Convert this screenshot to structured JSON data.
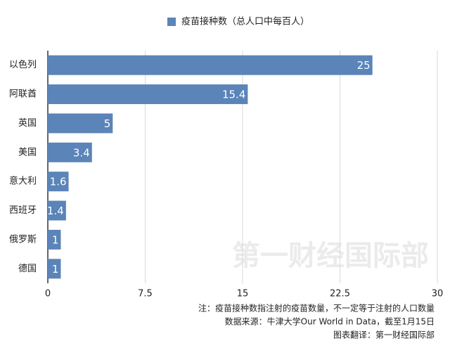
{
  "chart_data": {
    "type": "bar",
    "orientation": "horizontal",
    "categories": [
      "以色列",
      "阿联酋",
      "英国",
      "美国",
      "意大利",
      "西班牙",
      "俄罗斯",
      "德国"
    ],
    "series": [
      {
        "name": "疫苗接种数（总人口中每百人）",
        "color": "#5b84b8",
        "values": [
          25,
          15.4,
          5,
          3.4,
          1.6,
          1.4,
          1,
          1
        ]
      }
    ],
    "xlim": [
      0,
      30
    ],
    "xticks": [
      0,
      7.5,
      15,
      22.5,
      30
    ],
    "grid": true,
    "notes": [
      "注：疫苗接种数指注射的疫苗数量，不一定等于注射的人口数量",
      "数据来源：牛津大学Our World in Data，截至1月15日",
      "图表翻译：第一财经国际部"
    ],
    "watermark": "第一财经国际部"
  }
}
